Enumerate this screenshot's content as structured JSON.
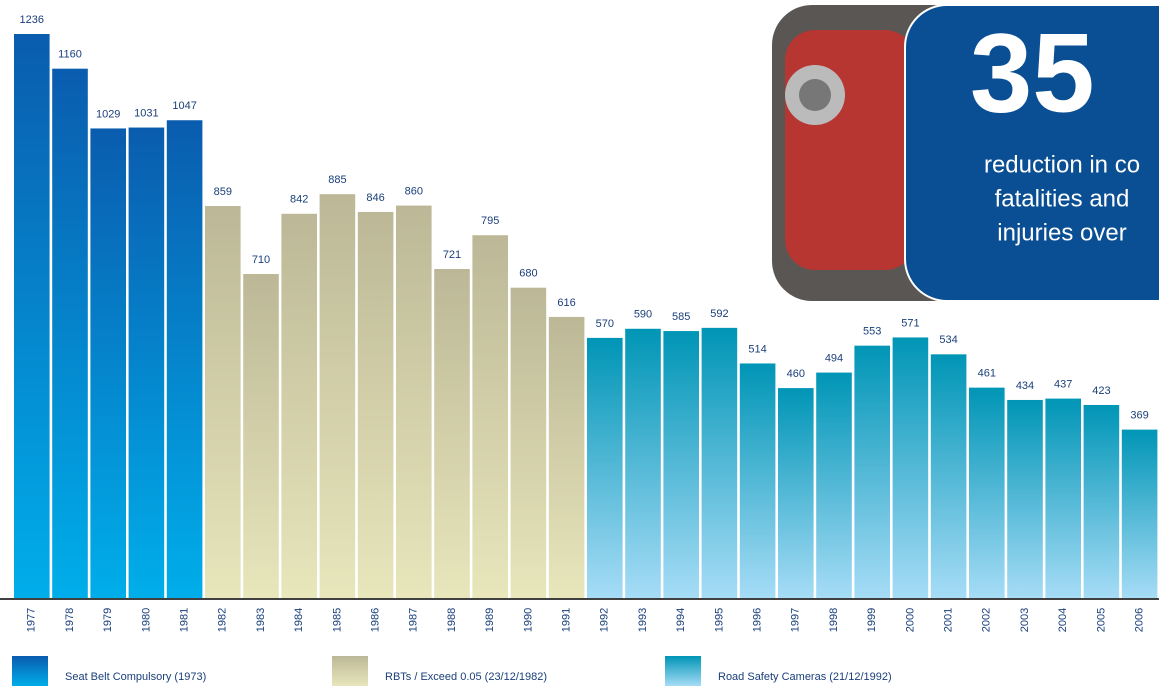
{
  "chart_data": {
    "type": "bar",
    "categories": [
      "1977",
      "1978",
      "1979",
      "1980",
      "1981",
      "1982",
      "1983",
      "1984",
      "1985",
      "1986",
      "1987",
      "1988",
      "1989",
      "1990",
      "1991",
      "1992",
      "1993",
      "1994",
      "1995",
      "1996",
      "1997",
      "1998",
      "1999",
      "2000",
      "2001",
      "2002",
      "2003",
      "2004",
      "2005",
      "2006"
    ],
    "series": [
      {
        "name": "Seat Belt Compulsory (1973)",
        "color": "#0a5fb0",
        "gradient": [
          "#0a5cae",
          "#00aeea"
        ],
        "values": [
          1236,
          1160,
          1029,
          1031,
          1047,
          null,
          null,
          null,
          null,
          null,
          null,
          null,
          null,
          null,
          null,
          null,
          null,
          null,
          null,
          null,
          null,
          null,
          null,
          null,
          null,
          null,
          null,
          null,
          null,
          null
        ]
      },
      {
        "name": "RBTs / Exceed 0.05  (23/12/1982)",
        "color": "#c4c09e",
        "gradient": [
          "#bcb897",
          "#e8e6bb"
        ],
        "values": [
          null,
          null,
          null,
          null,
          null,
          859,
          710,
          842,
          885,
          846,
          860,
          721,
          795,
          680,
          616,
          null,
          null,
          null,
          null,
          null,
          null,
          null,
          null,
          null,
          null,
          null,
          null,
          null,
          null,
          null
        ]
      },
      {
        "name": "Road Safety Cameras (21/12/1992)",
        "color": "#0096b8",
        "gradient": [
          "#0095b6",
          "#a6dcf6"
        ],
        "values": [
          null,
          null,
          null,
          null,
          null,
          null,
          null,
          null,
          null,
          null,
          null,
          null,
          null,
          null,
          null,
          570,
          590,
          585,
          592,
          514,
          460,
          494,
          553,
          571,
          534,
          461,
          434,
          437,
          423,
          369
        ]
      }
    ],
    "ylim": [
      0,
      1236
    ],
    "callout": {
      "big": "35",
      "lines": [
        "reduction in co",
        "fatalities and",
        "injuries over"
      ]
    }
  }
}
